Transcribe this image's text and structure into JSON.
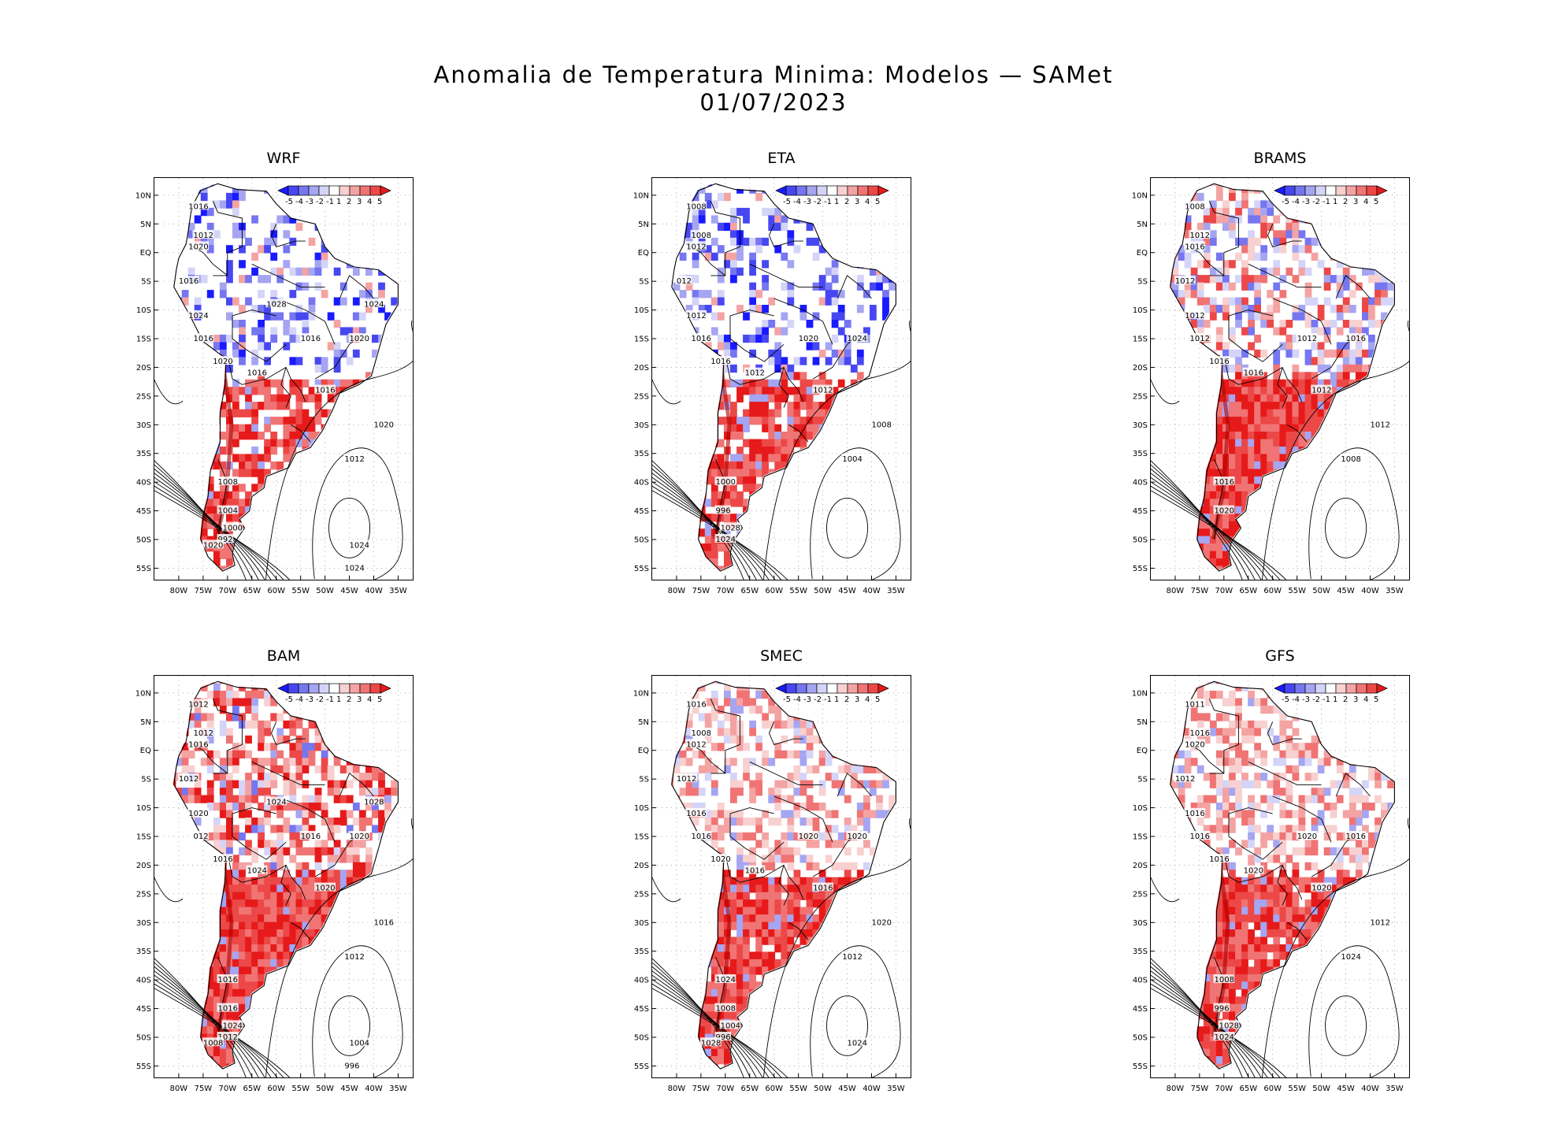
{
  "title": {
    "line1": "Anomalia de Temperatura Minima: Modelos — SAMet",
    "line2": "01/07/2023"
  },
  "colorbar": {
    "labels": [
      "-5",
      "-4",
      "-3",
      "-2",
      "-1",
      "1",
      "2",
      "3",
      "4",
      "5"
    ],
    "colors": [
      "#1a1aff",
      "#4747f2",
      "#7676f0",
      "#a5a5f2",
      "#d4d4f8",
      "#ffffff",
      "#f8d0d0",
      "#f4a3a3",
      "#f07474",
      "#ec4848",
      "#e61a1a"
    ]
  },
  "lat_labels": [
    "10N",
    "5N",
    "EQ",
    "5S",
    "10S",
    "15S",
    "20S",
    "25S",
    "30S",
    "35S",
    "40S",
    "45S",
    "50S",
    "55S"
  ],
  "lon_labels": [
    "80W",
    "75W",
    "70W",
    "65W",
    "60W",
    "55W",
    "50W",
    "45W",
    "40W",
    "35W"
  ],
  "panels": [
    {
      "id": "wrf",
      "title": "WRF",
      "north": "blue",
      "south": "red",
      "coverage": 0.3,
      "isobars": [
        "1016",
        "1012",
        "1020",
        "1016",
        "1024",
        "1016",
        "1020",
        "1016",
        "1016",
        "1020",
        "1016",
        "1020",
        "1012",
        "1008",
        "1004",
        "1000",
        "992",
        "1020",
        "1024",
        "1024",
        "1028",
        "1024"
      ]
    },
    {
      "id": "eta",
      "title": "ETA",
      "north": "blue",
      "south": "red",
      "coverage": 0.35,
      "isobars": [
        "1008",
        "1008",
        "1012",
        "012",
        "1012",
        "1016",
        "1016",
        "1012",
        "1020",
        "1024",
        "1012",
        "1008",
        "1004",
        "1000",
        "996",
        "1028",
        "1024"
      ]
    },
    {
      "id": "brams",
      "title": "BRAMS",
      "north": "mixed",
      "south": "red",
      "coverage": 0.55,
      "isobars": [
        "1008",
        "1012",
        "1016",
        "1012",
        "1012",
        "1012",
        "1016",
        "1016",
        "1012",
        "1016",
        "1012",
        "1012",
        "1008",
        "1016",
        "1020"
      ]
    },
    {
      "id": "bam",
      "title": "BAM",
      "north": "red",
      "south": "red",
      "coverage": 0.6,
      "isobars": [
        "1012",
        "1012",
        "1016",
        "1012",
        "1020",
        "012",
        "1016",
        "1024",
        "1016",
        "1020",
        "1020",
        "1016",
        "1012",
        "1016",
        "1016",
        "1024",
        "1012",
        "1008",
        "1004",
        "996",
        "1024",
        "1028"
      ]
    },
    {
      "id": "smec",
      "title": "SMEC",
      "north": "pale",
      "south": "red",
      "coverage": 0.5,
      "isobars": [
        "1016",
        "1008",
        "1012",
        "1012",
        "1016",
        "1016",
        "1020",
        "1016",
        "1020",
        "1020",
        "1016",
        "1020",
        "1012",
        "1024",
        "1008",
        "1004",
        "996",
        "1028",
        "1024"
      ]
    },
    {
      "id": "gfs",
      "title": "GFS",
      "north": "pale",
      "south": "red",
      "coverage": 0.5,
      "isobars": [
        "1011",
        "1016",
        "1020",
        "1012",
        "1016",
        "1016",
        "1016",
        "1020",
        "1020",
        "1016",
        "1020",
        "1012",
        "1024",
        "1008",
        "996",
        "1028",
        "1024"
      ]
    }
  ]
}
